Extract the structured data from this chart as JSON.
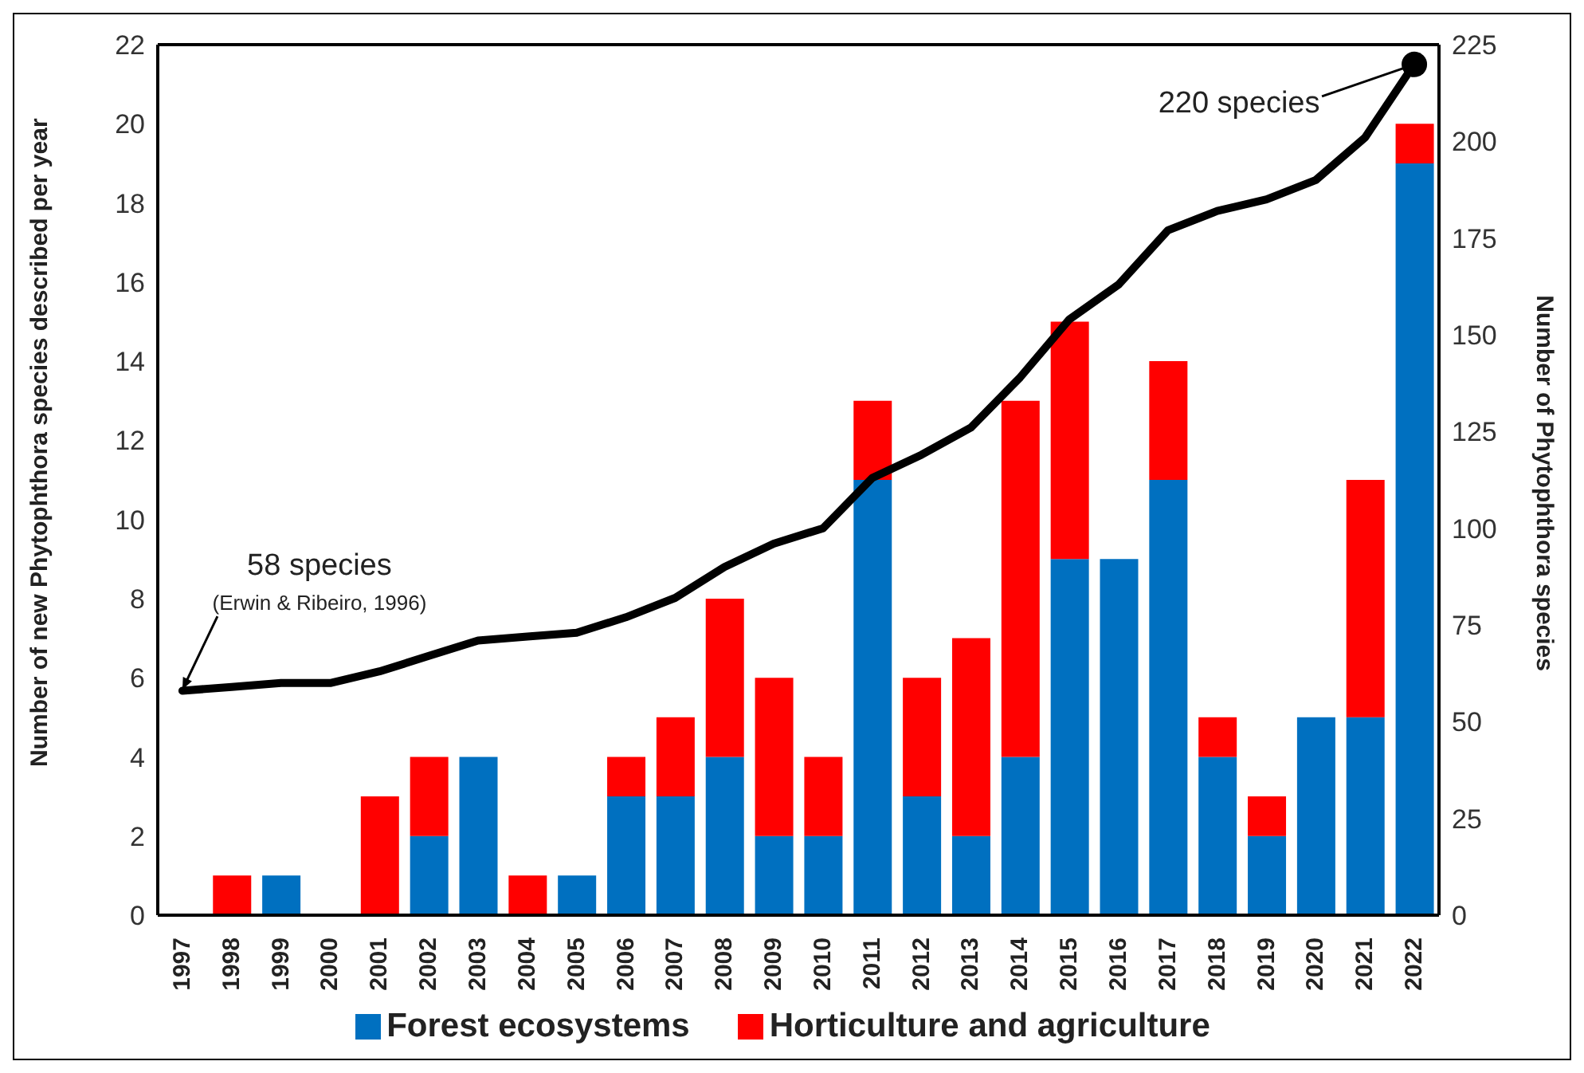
{
  "chart_data": {
    "type": "bar",
    "stacked": true,
    "ylabel": "Number of new Phytophthora species described per year",
    "y2label": "Number of Phytophthora species",
    "categories": [
      "1997",
      "1998",
      "1999",
      "2000",
      "2001",
      "2002",
      "2003",
      "2004",
      "2005",
      "2006",
      "2007",
      "2008",
      "2009",
      "2010",
      "2011",
      "2012",
      "2013",
      "2014",
      "2015",
      "2016",
      "2017",
      "2018",
      "2019",
      "2020",
      "2021",
      "2022"
    ],
    "series": [
      {
        "name": "Forest ecosystems",
        "color": "#0070c0",
        "values": [
          0,
          0,
          1,
          0,
          0,
          2,
          4,
          0,
          1,
          3,
          3,
          4,
          2,
          2,
          11,
          3,
          2,
          4,
          9,
          9,
          11,
          4,
          2,
          5,
          5,
          19
        ]
      },
      {
        "name": "Horticulture and agriculture",
        "color": "#ff0000",
        "values": [
          0,
          1,
          0,
          0,
          3,
          2,
          0,
          1,
          0,
          1,
          2,
          4,
          4,
          2,
          2,
          3,
          5,
          9,
          6,
          0,
          3,
          1,
          1,
          0,
          6,
          1
        ]
      },
      {
        "type": "line",
        "axis": "y2",
        "color": "#000000",
        "marker": "none",
        "values": [
          58,
          59,
          60,
          60,
          63,
          67,
          71,
          72,
          73,
          77,
          82,
          90,
          96,
          100,
          113,
          119,
          126,
          139,
          154,
          163,
          177,
          182,
          185,
          190,
          201,
          220
        ]
      }
    ],
    "ylim": [
      0,
      22
    ],
    "yticks": [
      0,
      2,
      4,
      6,
      8,
      10,
      12,
      14,
      16,
      18,
      20,
      22
    ],
    "y2lim": [
      0,
      225
    ],
    "y2ticks": [
      0,
      25,
      50,
      75,
      100,
      125,
      150,
      175,
      200,
      225
    ],
    "grid": false,
    "legend": "bottom",
    "annotations": [
      "58 species",
      {
        "text": "(Erwin & Ribeiro, 1996)",
        "x": "1997",
        "y": 5.7
      },
      {
        "text": "220 species",
        "x": "2022",
        "y": 21.5
      }
    ]
  }
}
